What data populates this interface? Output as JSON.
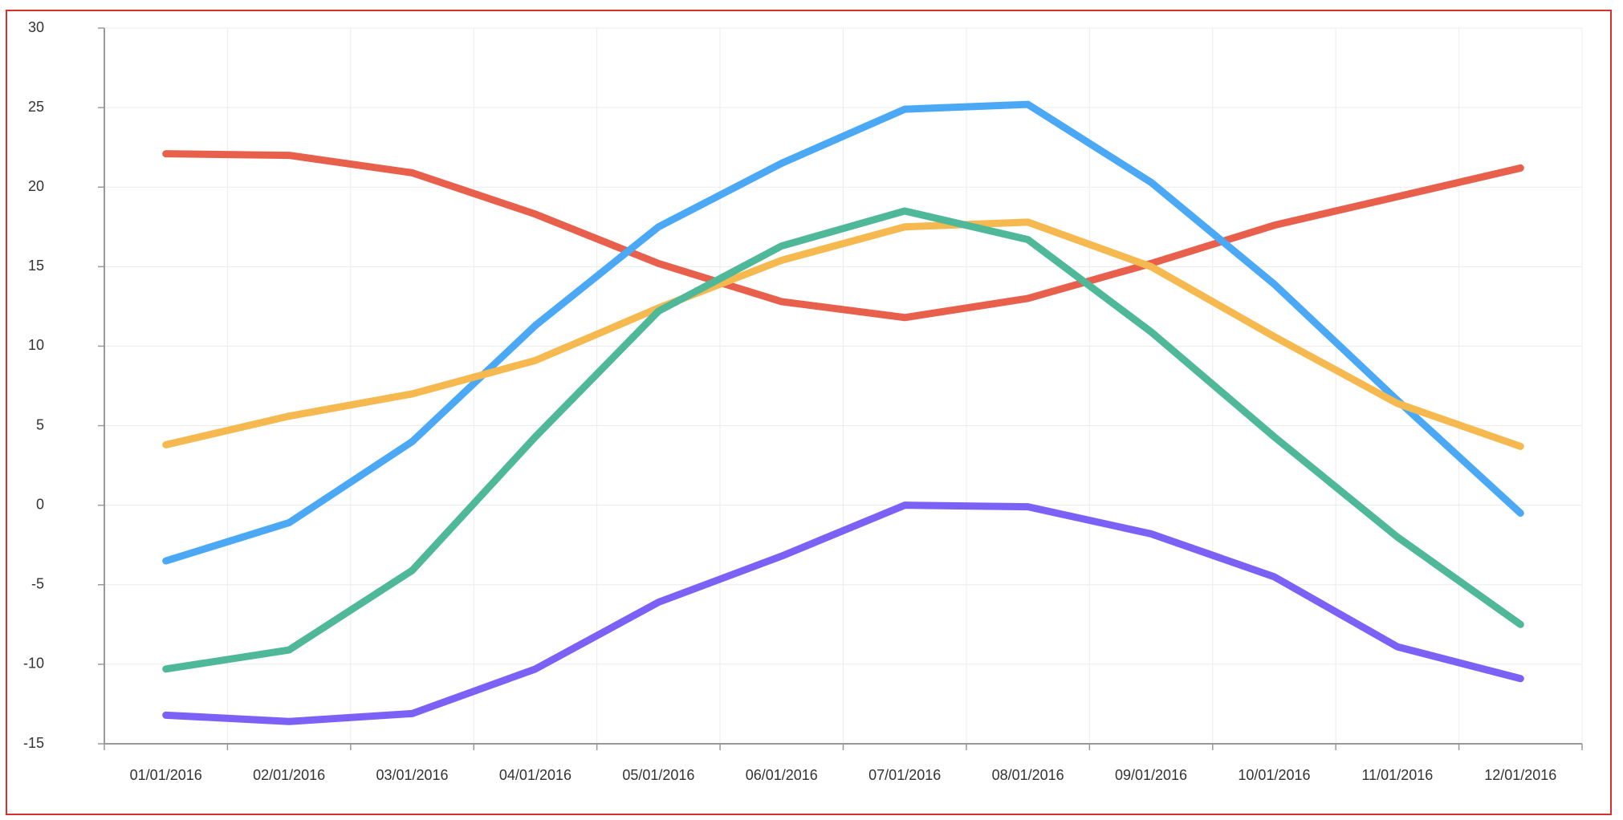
{
  "chart_data": {
    "type": "line",
    "categories": [
      "01/01/2016",
      "02/01/2016",
      "03/01/2016",
      "04/01/2016",
      "05/01/2016",
      "06/01/2016",
      "07/01/2016",
      "08/01/2016",
      "09/01/2016",
      "10/01/2016",
      "11/01/2016",
      "12/01/2016"
    ],
    "series": [
      {
        "color": "#e8604c",
        "values": [
          22.1,
          22.0,
          20.9,
          18.3,
          15.2,
          12.8,
          11.8,
          13.0,
          15.2,
          17.6,
          19.4,
          21.2
        ]
      },
      {
        "color": "#4aa8f5",
        "values": [
          -3.5,
          -1.1,
          4.0,
          11.3,
          17.5,
          21.5,
          24.9,
          25.2,
          20.3,
          13.9,
          6.6,
          -0.5
        ]
      },
      {
        "color": "#f5b94f",
        "values": [
          3.8,
          5.6,
          7.0,
          9.1,
          12.4,
          15.4,
          17.5,
          17.8,
          15.0,
          10.6,
          6.4,
          3.7
        ]
      },
      {
        "color": "#4fb898",
        "values": [
          -10.3,
          -9.1,
          -4.1,
          4.3,
          12.2,
          16.3,
          18.5,
          16.7,
          10.9,
          4.3,
          -2.0,
          -7.5
        ]
      },
      {
        "color": "#7b61f5",
        "values": [
          -13.2,
          -13.6,
          -13.1,
          -10.3,
          -6.1,
          -3.2,
          0.0,
          -0.1,
          -1.8,
          -4.5,
          -8.9,
          -10.9
        ]
      }
    ],
    "ylim": [
      -15,
      30
    ],
    "yticks": [
      -15,
      -10,
      -5,
      0,
      5,
      10,
      15,
      20,
      25,
      30
    ],
    "grid": true
  }
}
